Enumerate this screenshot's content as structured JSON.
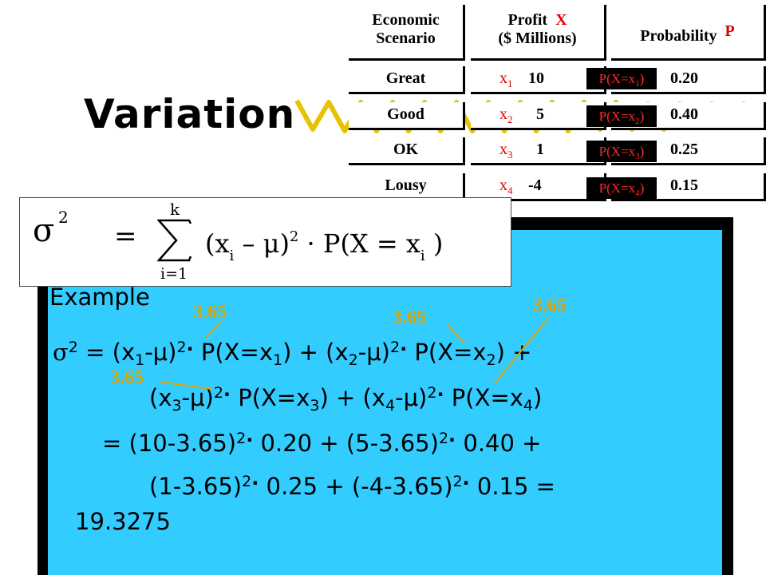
{
  "title": "Variation",
  "table": {
    "headers": {
      "scenario_l1": "Economic",
      "scenario_l2": "Scenario",
      "profit_l1": "Profit",
      "profit_var": "X",
      "profit_l2": "($ Millions)",
      "prob_label": "Probability",
      "prob_var": "P"
    },
    "rows": [
      {
        "scenario": "Great",
        "xvar": "x",
        "xsub": "1",
        "profit": "10",
        "pbox": "P(X=x",
        "psub": "1",
        "pclose": ")",
        "prob": "0.20"
      },
      {
        "scenario": "Good",
        "xvar": "x",
        "xsub": "2",
        "profit": "5",
        "pbox": "P(X=x",
        "psub": "2",
        "pclose": ")",
        "prob": "0.40"
      },
      {
        "scenario": "OK",
        "xvar": "x",
        "xsub": "3",
        "profit": "1",
        "pbox": "P(X=x",
        "psub": "3",
        "pclose": ")",
        "prob": "0.25"
      },
      {
        "scenario": "Lousy",
        "xvar": "x",
        "xsub": "4",
        "profit": "-4",
        "pbox": "P(X=x",
        "psub": "4",
        "pclose": ")",
        "prob": "0.15"
      }
    ]
  },
  "formula": {
    "sigma": "σ",
    "sq": "2",
    "eq": "=",
    "sum_upper": "k",
    "sum_lower": "i=1",
    "body1": "(x",
    "sub_i": "i",
    "body2": "– μ)",
    "sq2": "2",
    "body3": "· P(X = x",
    "sub_i2": "i",
    "body4": ")"
  },
  "example": {
    "label": "Example",
    "line1": {
      "sigma": "σ",
      "a": " = (x",
      "b": "-μ)",
      "c": " P(X=x",
      "d": ") + (x",
      "e": "-μ)",
      "f": " P(X=x",
      "g": ") +"
    },
    "line2": {
      "a": "(x",
      "b": "-μ)",
      "c": " P(X=x",
      "d": ") + (x",
      "e": "-μ)",
      "f": " P(X=x",
      "g": ")"
    },
    "line3": "= (10-3.65)",
    "line3b": " 0.20 + (5-3.65)",
    "line3c": " 0.40 +",
    "line4": "(1-3.65)",
    "line4b": " 0.25 + (-4-3.65)",
    "line4c": " 0.15 =",
    "line5": "19.3275",
    "sub1": "1",
    "sub2": "2",
    "sub3": "3",
    "sub4": "4",
    "sup2": "2",
    "dot": "·"
  },
  "annotations": [
    "3.65",
    "3.65",
    "3.65",
    "3.65"
  ],
  "colors": {
    "panel": "#33ccff",
    "annotation": "#e0a000",
    "accent_red": "#e00000"
  }
}
